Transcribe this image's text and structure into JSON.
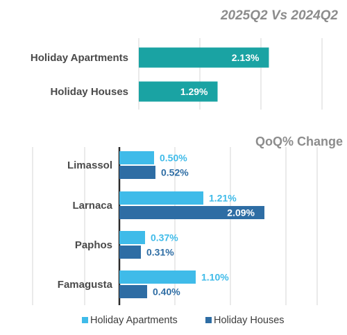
{
  "chart_data": [
    {
      "type": "bar",
      "orientation": "horizontal",
      "title": "2025Q2 Vs 2024Q2",
      "categories": [
        "Holiday Apartments",
        "Holiday Houses"
      ],
      "values": [
        2.13,
        1.29
      ],
      "value_labels": [
        "2.13%",
        "1.29%"
      ],
      "unit": "%",
      "xlim": [
        0,
        5.0
      ],
      "grid": true,
      "colors": {
        "bar": "#1aa3a3",
        "label": "#ffffff"
      }
    },
    {
      "type": "bar",
      "orientation": "horizontal",
      "title": "QoQ% Change",
      "categories": [
        "Limassol",
        "Larnaca",
        "Paphos",
        "Famagusta"
      ],
      "series": [
        {
          "name": "Holiday Apartments",
          "values": [
            0.5,
            1.21,
            0.37,
            1.1
          ],
          "value_labels": [
            "0.50%",
            "1.21%",
            "0.37%",
            "1.10%"
          ],
          "color": "#3fbbe9"
        },
        {
          "name": "Holiday Houses",
          "values": [
            0.52,
            2.09,
            0.31,
            0.4
          ],
          "value_labels": [
            "0.52%",
            "2.09%",
            "0.31%",
            "0.40%"
          ],
          "color": "#2e6da4"
        }
      ],
      "unit": "%",
      "xlim": [
        -0.5,
        2.5
      ],
      "grid": true,
      "legend": "bottom"
    }
  ]
}
